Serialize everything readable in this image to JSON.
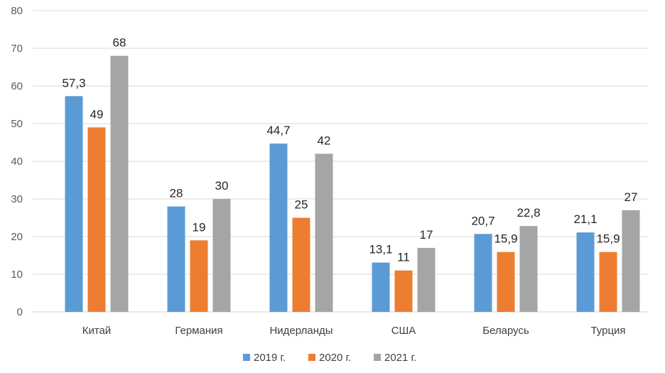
{
  "chart_data": {
    "type": "bar",
    "title": "",
    "xlabel": "",
    "ylabel": "",
    "ylim": [
      0,
      80
    ],
    "yticks": [
      0,
      10,
      20,
      30,
      40,
      50,
      60,
      70,
      80
    ],
    "grid": true,
    "legend_position": "bottom",
    "categories": [
      "Китай",
      "Германия",
      "Нидерланды",
      "США",
      "Беларусь",
      "Турция"
    ],
    "series": [
      {
        "name": "2019 г.",
        "color": "#5b9bd5",
        "values": [
          57.3,
          28,
          44.7,
          13.1,
          20.7,
          21.1
        ],
        "labels": [
          "57,3",
          "28",
          "44,7",
          "13,1",
          "20,7",
          "21,1"
        ]
      },
      {
        "name": "2020 г.",
        "color": "#ed7d31",
        "values": [
          49,
          19,
          25,
          11,
          15.9,
          15.9
        ],
        "labels": [
          "49",
          "19",
          "25",
          "11",
          "15,9",
          "15,9"
        ]
      },
      {
        "name": "2021 г.",
        "color": "#a5a5a5",
        "values": [
          68,
          30,
          42,
          17,
          22.8,
          27
        ],
        "labels": [
          "68",
          "30",
          "42",
          "17",
          "22,8",
          "27"
        ]
      }
    ]
  }
}
